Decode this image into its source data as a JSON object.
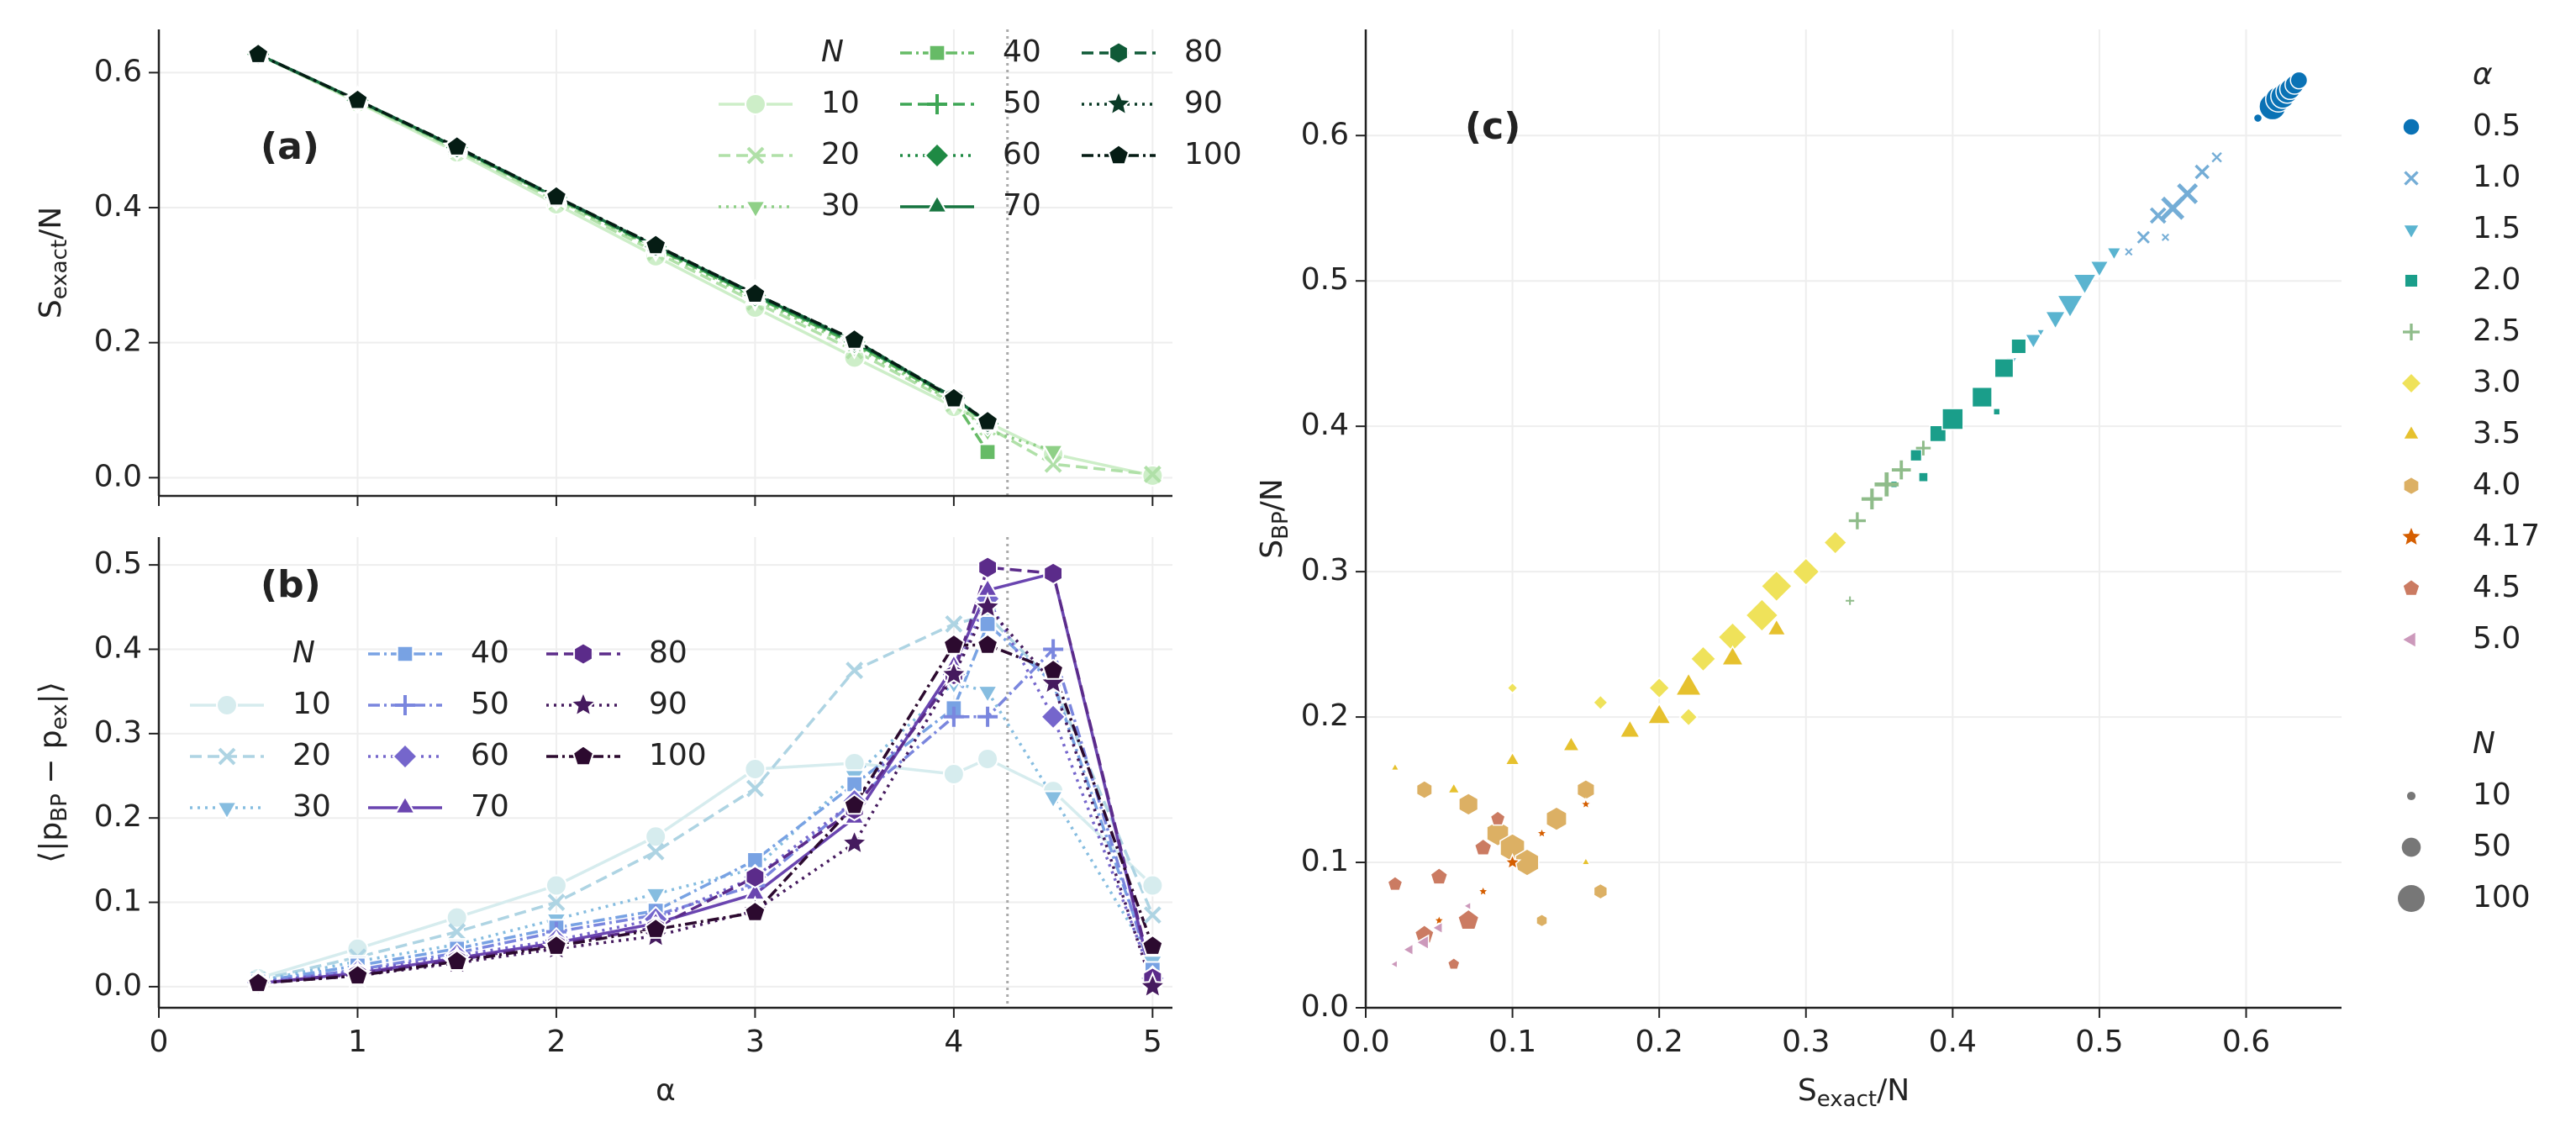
{
  "chart_data": [
    {
      "type": "line",
      "annotation": "(a)",
      "ylabel": [
        "S",
        "exact",
        "/N"
      ],
      "x": [
        0.5,
        1,
        1.5,
        2,
        2.5,
        3,
        3.5,
        4,
        4.17,
        4.5,
        5
      ],
      "xlim": [
        0,
        5.1
      ],
      "xticks": [
        0,
        1,
        2,
        3,
        4,
        5
      ],
      "xticklabels": false,
      "ylim": [
        -0.027,
        0.664
      ],
      "yticks": [
        {
          "value": 0,
          "label": "0.0"
        },
        {
          "value": 0.2,
          "label": "0.2"
        },
        {
          "value": 0.4,
          "label": "0.4"
        },
        {
          "value": 0.6,
          "label": "0.6"
        }
      ],
      "grid": true,
      "vline": 4.27,
      "legend": "upper right",
      "legend_title": "N",
      "series": [
        {
          "name": "10",
          "color": "#cdeec8",
          "marker": "circle",
          "linestyle": "solid",
          "values": [
            0.627,
            0.556,
            0.482,
            0.405,
            0.328,
            0.252,
            0.178,
            0.105,
            0.082,
            0.035,
            0.003
          ]
        },
        {
          "name": "20",
          "color": "#b0e0a8",
          "marker": "x",
          "linestyle": "dashed",
          "values": [
            0.627,
            0.557,
            0.485,
            0.41,
            0.334,
            0.26,
            0.188,
            0.11,
            0.075,
            0.02,
            0.005
          ]
        },
        {
          "name": "30",
          "color": "#8fd087",
          "marker": "triangle-down",
          "linestyle": "dotted",
          "values": [
            0.627,
            0.558,
            0.487,
            0.413,
            0.338,
            0.265,
            0.194,
            0.112,
            0.07,
            0.04,
            null
          ]
        },
        {
          "name": "40",
          "color": "#66bb66",
          "marker": "square",
          "linestyle": "dashdot",
          "values": [
            0.627,
            0.558,
            0.488,
            0.414,
            0.34,
            0.268,
            0.198,
            0.115,
            0.038,
            null,
            null
          ]
        },
        {
          "name": "50",
          "color": "#3ea655",
          "marker": "plus",
          "linestyle": "dashed",
          "values": [
            0.627,
            0.559,
            0.488,
            0.415,
            0.341,
            0.269,
            0.2,
            0.117,
            0.08,
            null,
            null
          ]
        },
        {
          "name": "60",
          "color": "#1f8a44",
          "marker": "diamond",
          "linestyle": "dotted",
          "values": [
            0.627,
            0.559,
            0.489,
            0.415,
            0.342,
            0.27,
            0.201,
            0.118,
            0.08,
            null,
            null
          ]
        },
        {
          "name": "70",
          "color": "#177540",
          "marker": "triangle-up",
          "linestyle": "solid",
          "values": [
            0.627,
            0.559,
            0.489,
            0.415,
            0.343,
            0.271,
            0.202,
            0.118,
            0.082,
            null,
            null
          ]
        },
        {
          "name": "80",
          "color": "#0f5a37",
          "marker": "hexagon",
          "linestyle": "dashed",
          "values": [
            0.627,
            0.559,
            0.489,
            0.416,
            0.343,
            0.272,
            0.203,
            0.119,
            0.082,
            null,
            null
          ]
        },
        {
          "name": "90",
          "color": "#0a3a26",
          "marker": "star",
          "linestyle": "dotted",
          "values": [
            0.627,
            0.559,
            0.489,
            0.416,
            0.344,
            0.272,
            0.204,
            0.118,
            0.083,
            null,
            null
          ]
        },
        {
          "name": "100",
          "color": "#051c14",
          "marker": "pentagon",
          "linestyle": "dashdot",
          "values": [
            0.627,
            0.559,
            0.49,
            0.416,
            0.344,
            0.272,
            0.204,
            0.117,
            0.083,
            null,
            null
          ]
        }
      ]
    },
    {
      "type": "line",
      "annotation": "(b)",
      "ylabel": [
        "⟨|p",
        "BP",
        " − p",
        "ex",
        "|⟩"
      ],
      "xlabel": "α",
      "x": [
        0.5,
        1,
        1.5,
        2,
        2.5,
        3,
        3.5,
        4,
        4.17,
        4.5,
        5
      ],
      "xlim": [
        0,
        5.1
      ],
      "xticks": [
        0,
        1,
        2,
        3,
        4,
        5
      ],
      "ylim": [
        -0.025,
        0.533
      ],
      "yticks": [
        {
          "value": 0,
          "label": "0.0"
        },
        {
          "value": 0.1,
          "label": "0.1"
        },
        {
          "value": 0.2,
          "label": "0.2"
        },
        {
          "value": 0.3,
          "label": "0.3"
        },
        {
          "value": 0.4,
          "label": "0.4"
        },
        {
          "value": 0.5,
          "label": "0.5"
        }
      ],
      "grid": true,
      "vline": 4.27,
      "legend": "center left",
      "legend_title": "N",
      "series": [
        {
          "name": "10",
          "color": "#d6ecee",
          "marker": "circle",
          "linestyle": "solid",
          "values": [
            0.01,
            0.045,
            0.082,
            0.12,
            0.178,
            0.258,
            0.265,
            0.252,
            0.27,
            0.232,
            0.12
          ]
        },
        {
          "name": "20",
          "color": "#aed4e3",
          "marker": "x",
          "linestyle": "dashed",
          "values": [
            0.008,
            0.035,
            0.065,
            0.1,
            0.16,
            0.235,
            0.375,
            0.43,
            0.44,
            0.36,
            0.085
          ]
        },
        {
          "name": "30",
          "color": "#86bde0",
          "marker": "triangle-down",
          "linestyle": "dotted",
          "values": [
            0.007,
            0.03,
            0.05,
            0.08,
            0.11,
            0.14,
            0.25,
            0.36,
            0.35,
            0.225,
            0.03
          ]
        },
        {
          "name": "40",
          "color": "#78a2e3",
          "marker": "square",
          "linestyle": "dashdot",
          "values": [
            0.006,
            0.025,
            0.045,
            0.07,
            0.09,
            0.15,
            0.24,
            0.33,
            0.43,
            0.36,
            0.02
          ]
        },
        {
          "name": "50",
          "color": "#7a86de",
          "marker": "plus",
          "linestyle": "dashdot",
          "values": [
            0.005,
            0.02,
            0.04,
            0.065,
            0.085,
            0.12,
            0.22,
            0.32,
            0.32,
            0.4,
            0.01
          ]
        },
        {
          "name": "60",
          "color": "#7566cc",
          "marker": "diamond",
          "linestyle": "dotted",
          "values": [
            0.005,
            0.018,
            0.037,
            0.055,
            0.08,
            0.13,
            0.22,
            0.37,
            0.46,
            0.32,
            0.01
          ]
        },
        {
          "name": "70",
          "color": "#6a45b0",
          "marker": "triangle-up",
          "linestyle": "solid",
          "values": [
            0.004,
            0.016,
            0.034,
            0.052,
            0.075,
            0.11,
            0.2,
            0.38,
            0.47,
            0.49,
            0.005
          ]
        },
        {
          "name": "80",
          "color": "#5b2b8a",
          "marker": "hexagon",
          "linestyle": "dashed",
          "values": [
            0.004,
            0.015,
            0.032,
            0.05,
            0.07,
            0.13,
            0.21,
            0.37,
            0.497,
            0.49,
            0.01
          ]
        },
        {
          "name": "90",
          "color": "#451a5e",
          "marker": "star",
          "linestyle": "dotted",
          "values": [
            0.004,
            0.013,
            0.028,
            0.045,
            0.06,
            0.09,
            0.17,
            0.37,
            0.45,
            0.36,
            0.0
          ]
        },
        {
          "name": "100",
          "color": "#2c0a2f",
          "marker": "pentagon",
          "linestyle": "dashdot",
          "values": [
            0.004,
            0.013,
            0.03,
            0.048,
            0.068,
            0.088,
            0.215,
            0.405,
            0.405,
            0.375,
            0.048
          ]
        }
      ]
    },
    {
      "type": "scatter",
      "annotation": "(c)",
      "xlabel": [
        "S",
        "exact",
        "/N"
      ],
      "ylabel": [
        "S",
        "BP",
        "/N"
      ],
      "xlim": [
        0,
        0.665
      ],
      "xticks": [
        {
          "value": 0,
          "label": "0.0"
        },
        {
          "value": 0.1,
          "label": "0.1"
        },
        {
          "value": 0.2,
          "label": "0.2"
        },
        {
          "value": 0.3,
          "label": "0.3"
        },
        {
          "value": 0.4,
          "label": "0.4"
        },
        {
          "value": 0.5,
          "label": "0.5"
        },
        {
          "value": 0.6,
          "label": "0.6"
        }
      ],
      "ylim": [
        0,
        0.673
      ],
      "yticks": [
        {
          "value": 0,
          "label": "0.0"
        },
        {
          "value": 0.1,
          "label": "0.1"
        },
        {
          "value": 0.2,
          "label": "0.2"
        },
        {
          "value": 0.3,
          "label": "0.3"
        },
        {
          "value": 0.4,
          "label": "0.4"
        },
        {
          "value": 0.5,
          "label": "0.5"
        },
        {
          "value": 0.6,
          "label": "0.6"
        }
      ],
      "grid": true,
      "legend": "outside right",
      "legend_title": "α",
      "size_legend": {
        "title": "N",
        "values": [
          10,
          50,
          100
        ]
      },
      "series": [
        {
          "name": "0.5",
          "color": "#0a72b5",
          "marker": "circle",
          "x": [
            0.618,
            0.622,
            0.625,
            0.628,
            0.63,
            0.633,
            0.636,
            0.608
          ],
          "values": [
            0.62,
            0.625,
            0.627,
            0.63,
            0.632,
            0.635,
            0.638,
            0.612
          ],
          "sizes": [
            100,
            90,
            80,
            70,
            60,
            50,
            40,
            10
          ]
        },
        {
          "name": "1.0",
          "color": "#74add6",
          "marker": "x",
          "x": [
            0.52,
            0.53,
            0.54,
            0.55,
            0.56,
            0.57,
            0.58,
            0.545
          ],
          "values": [
            0.52,
            0.53,
            0.545,
            0.55,
            0.56,
            0.575,
            0.585,
            0.53
          ],
          "sizes": [
            10,
            30,
            50,
            100,
            80,
            40,
            20,
            10
          ]
        },
        {
          "name": "1.5",
          "color": "#5ab4d0",
          "marker": "triangle-down",
          "x": [
            0.44,
            0.455,
            0.47,
            0.48,
            0.49,
            0.5,
            0.51,
            0.46
          ],
          "values": [
            0.445,
            0.46,
            0.475,
            0.485,
            0.5,
            0.51,
            0.52,
            0.465
          ],
          "sizes": [
            20,
            40,
            60,
            100,
            80,
            50,
            30,
            10
          ]
        },
        {
          "name": "2.0",
          "color": "#1a9e8a",
          "marker": "square",
          "x": [
            0.36,
            0.375,
            0.39,
            0.4,
            0.42,
            0.435,
            0.445,
            0.38,
            0.43
          ],
          "values": [
            0.36,
            0.38,
            0.395,
            0.405,
            0.42,
            0.44,
            0.455,
            0.365,
            0.41
          ],
          "sizes": [
            10,
            30,
            60,
            100,
            90,
            80,
            50,
            20,
            10
          ]
        },
        {
          "name": "2.5",
          "color": "#8fbc8a",
          "marker": "plus",
          "x": [
            0.3,
            0.32,
            0.335,
            0.345,
            0.355,
            0.365,
            0.38,
            0.33
          ],
          "values": [
            0.3,
            0.32,
            0.335,
            0.35,
            0.36,
            0.37,
            0.385,
            0.28
          ],
          "sizes": [
            10,
            20,
            40,
            60,
            80,
            50,
            30,
            10
          ]
        },
        {
          "name": "3.0",
          "color": "#efe25a",
          "marker": "diamond",
          "x": [
            0.1,
            0.16,
            0.2,
            0.23,
            0.25,
            0.27,
            0.28,
            0.3,
            0.32,
            0.22
          ],
          "values": [
            0.22,
            0.21,
            0.22,
            0.24,
            0.255,
            0.27,
            0.29,
            0.3,
            0.32,
            0.2
          ],
          "sizes": [
            10,
            20,
            40,
            60,
            80,
            100,
            90,
            70,
            50,
            30
          ]
        },
        {
          "name": "3.5",
          "color": "#e6c12e",
          "marker": "triangle-up",
          "x": [
            0.02,
            0.06,
            0.1,
            0.14,
            0.18,
            0.2,
            0.22,
            0.25,
            0.28,
            0.15
          ],
          "values": [
            0.165,
            0.15,
            0.17,
            0.18,
            0.19,
            0.2,
            0.22,
            0.24,
            0.26,
            0.1
          ],
          "sizes": [
            10,
            20,
            30,
            40,
            60,
            80,
            100,
            70,
            50,
            10
          ]
        },
        {
          "name": "4.0",
          "color": "#dcb064",
          "marker": "hexagon",
          "x": [
            0.04,
            0.07,
            0.09,
            0.1,
            0.11,
            0.13,
            0.15,
            0.16,
            0.12
          ],
          "values": [
            0.15,
            0.14,
            0.12,
            0.11,
            0.1,
            0.13,
            0.15,
            0.08,
            0.06
          ],
          "sizes": [
            40,
            60,
            80,
            100,
            90,
            70,
            50,
            30,
            20
          ]
        },
        {
          "name": "4.17",
          "color": "#d55e00",
          "marker": "star",
          "x": [
            0.05,
            0.08,
            0.1,
            0.12,
            0.15
          ],
          "values": [
            0.06,
            0.08,
            0.1,
            0.12,
            0.14
          ],
          "sizes": [
            10,
            10,
            20,
            10,
            10
          ]
        },
        {
          "name": "4.5",
          "color": "#cb7b62",
          "marker": "pentagon",
          "x": [
            0.02,
            0.04,
            0.05,
            0.07,
            0.08,
            0.09,
            0.06
          ],
          "values": [
            0.085,
            0.05,
            0.09,
            0.06,
            0.11,
            0.13,
            0.03
          ],
          "sizes": [
            30,
            50,
            40,
            60,
            40,
            30,
            20
          ]
        },
        {
          "name": "5.0",
          "color": "#cc99bb",
          "marker": "triangle-left",
          "x": [
            0.02,
            0.03,
            0.04,
            0.05,
            0.07
          ],
          "values": [
            0.03,
            0.04,
            0.045,
            0.055,
            0.07
          ],
          "sizes": [
            10,
            20,
            30,
            20,
            10
          ]
        }
      ]
    }
  ]
}
